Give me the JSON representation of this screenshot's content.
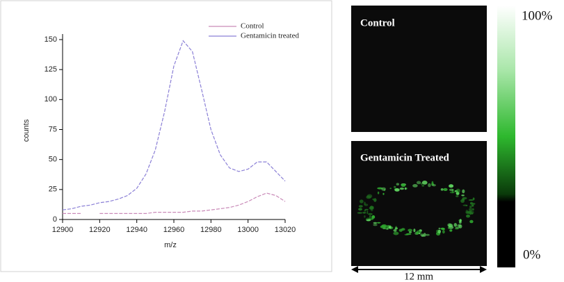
{
  "chart_data": {
    "type": "line",
    "x_label": "m/z",
    "y_label": "counts",
    "x": [
      12900,
      12905,
      12910,
      12915,
      12920,
      12925,
      12930,
      12935,
      12940,
      12945,
      12950,
      12955,
      12960,
      12965,
      12970,
      12975,
      12980,
      12985,
      12990,
      12995,
      13000,
      13005,
      13010,
      13015,
      13020
    ],
    "series": [
      {
        "name": "Control",
        "color": "#c98ab8",
        "values": [
          5,
          5,
          5,
          null,
          5,
          5,
          5,
          5,
          5,
          5,
          6,
          6,
          6,
          6,
          7,
          7,
          8,
          9,
          10,
          12,
          15,
          19,
          22,
          20,
          15
        ]
      },
      {
        "name": "Gentamicin treated",
        "color": "#8a7fd6",
        "values": [
          8,
          9,
          11,
          12,
          14,
          15,
          17,
          20,
          26,
          38,
          58,
          90,
          128,
          149,
          140,
          108,
          75,
          54,
          43,
          40,
          42,
          48,
          48,
          40,
          32
        ]
      }
    ],
    "xlim": [
      12900,
      13020
    ],
    "xticks": [
      12900,
      12920,
      12940,
      12960,
      12980,
      13000,
      13020
    ],
    "ylim": [
      0,
      150
    ],
    "yticks": [
      0,
      25,
      50,
      75,
      100,
      125,
      150
    ],
    "grid": false,
    "legend": "top-right"
  },
  "images": {
    "panels": [
      {
        "label": "Control"
      },
      {
        "label": "Gentamicin Treated"
      }
    ],
    "colorbar": {
      "max_label": "100%",
      "min_label": "0%"
    },
    "scale_bar": "12 mm"
  }
}
